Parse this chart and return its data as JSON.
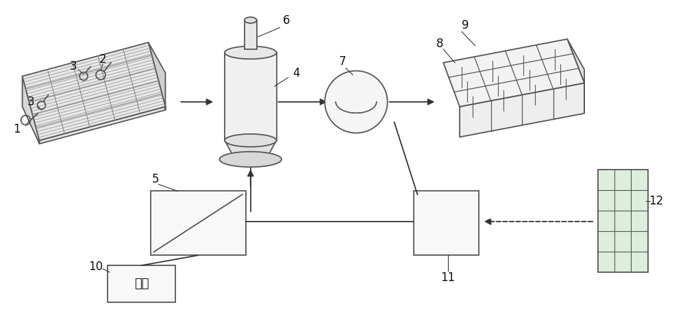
{
  "bg_color": "#ffffff",
  "line_color": "#555555",
  "label_color": "#111111",
  "figsize": [
    10.0,
    4.65
  ],
  "dpi": 100
}
